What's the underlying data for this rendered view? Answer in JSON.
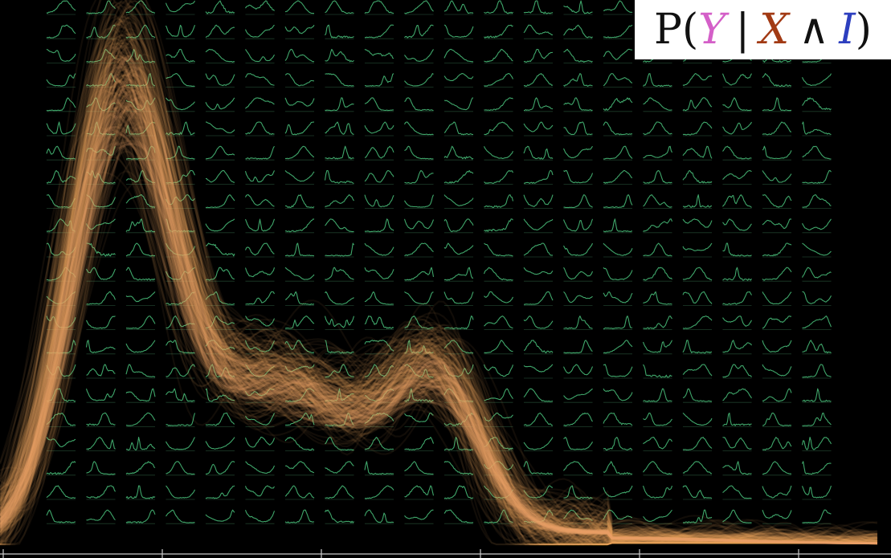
{
  "formula": {
    "prefix": "P(",
    "var_y": "Y",
    "bar": "|",
    "var_x": "X",
    "and": "∧",
    "var_i": "I",
    "suffix": ")"
  },
  "colors": {
    "background": "#000000",
    "sparkline": "#3fa66a",
    "curves": "#f2a66a",
    "axis": "#cccccc",
    "var_y": "#d45fc8",
    "var_x": "#a23a14",
    "var_i": "#2d3fbf",
    "formula_text": "#111111"
  },
  "grid": {
    "columns": 20,
    "rows": 22
  }
}
